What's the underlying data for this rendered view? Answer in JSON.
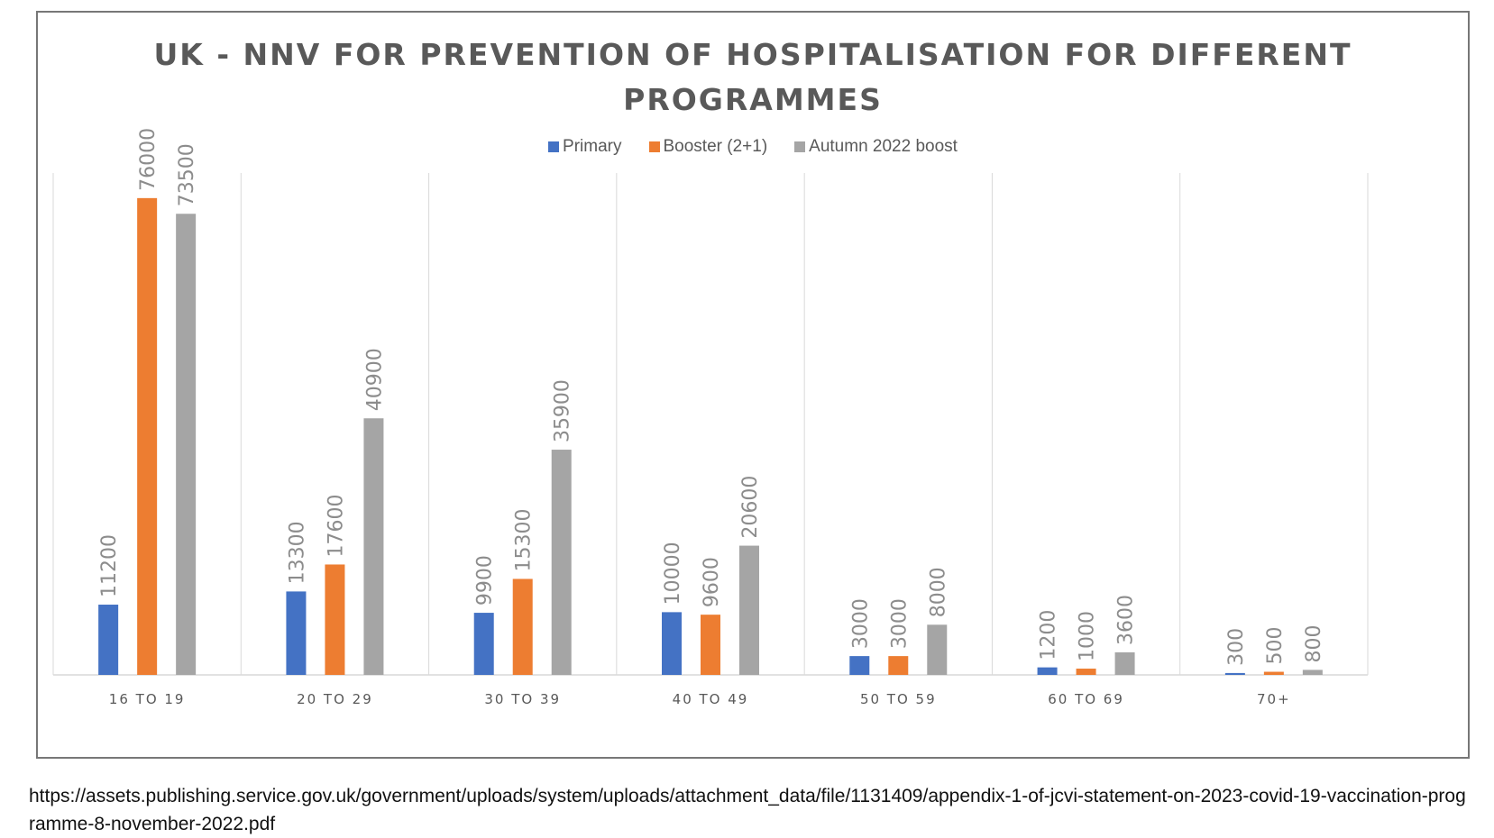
{
  "chart_data": {
    "type": "bar",
    "title_lines": [
      "UK - NNV FOR PREVENTION OF HOSPITALISATION FOR DIFFERENT",
      "PROGRAMMES"
    ],
    "categories": [
      "16 TO 19",
      "20 TO 29",
      "30 TO 39",
      "40 TO 49",
      "50 TO 59",
      "60 TO 69",
      "70+"
    ],
    "series": [
      {
        "name": "Primary",
        "color": "#4472C4",
        "values": [
          11200,
          13300,
          9900,
          10000,
          3000,
          1200,
          300
        ]
      },
      {
        "name": "Booster (2+1)",
        "color": "#ED7D31",
        "values": [
          76000,
          17600,
          15300,
          9600,
          3000,
          1000,
          500
        ]
      },
      {
        "name": "Autumn 2022 boost",
        "color": "#A5A5A5",
        "values": [
          73500,
          40900,
          35900,
          20600,
          8000,
          3600,
          800
        ]
      }
    ],
    "ylim": [
      0,
      80000
    ],
    "legend_position": "top",
    "data_labels": true,
    "category_gridlines": true
  },
  "source": {
    "url": "https://assets.publishing.service.gov.uk/government/uploads/system/uploads/attachment_data/file/1131409/appendix-1-of-jcvi-statement-on-2023-covid-19-vaccination-programme-8-november-2022.pdf"
  }
}
